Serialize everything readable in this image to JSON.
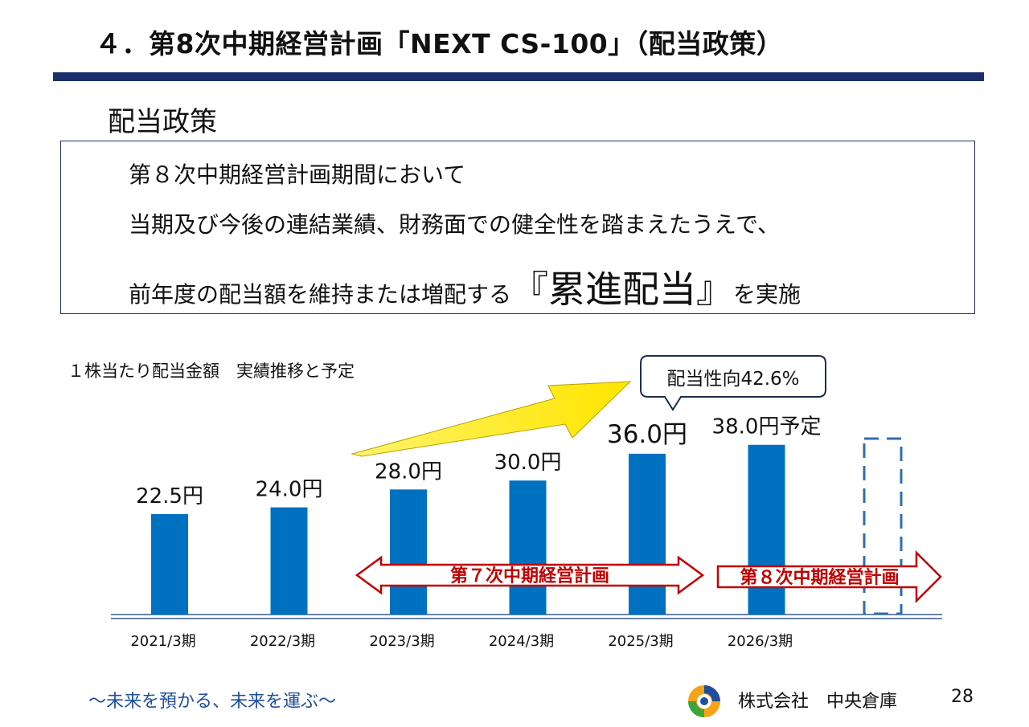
{
  "header": {
    "title": "４．第8次中期経営計画「NEXT CS-100」（配当政策）",
    "section": "配当政策"
  },
  "policy": {
    "line1": "第８次中期経営計画期間において",
    "line2": "当期及び今後の連結業績、財務面での健全性を踏まえたうえで、",
    "line3_pre": "前年度の配当額を維持または増配する",
    "line3_big": "『累進配当』",
    "line3_post": "を実施"
  },
  "chart_data": {
    "type": "bar",
    "title": "１株当たり配当金額　実績推移と予定",
    "unit": "円",
    "categories": [
      "2021/3期",
      "2022/3期",
      "2023/3期",
      "2024/3期",
      "2025/3期",
      "2026/3期"
    ],
    "values": [
      22.5,
      24.0,
      28.0,
      30.0,
      36.0,
      38.0
    ],
    "value_labels": [
      "22.5円",
      "24.0円",
      "28.0円",
      "30.0円",
      "36.0円",
      "38.0円予定"
    ],
    "bar_color": "#0070c0",
    "ylim": [
      0,
      45
    ],
    "callout": "配当性向42.6%",
    "plan_arrows": [
      {
        "label": "第７次中期経営計画",
        "from": "2023/3期",
        "to": "2025/3期"
      },
      {
        "label": "第８次中期経営計画",
        "from": "2026/3期",
        "to": "2027/3期"
      }
    ],
    "plan_arrow_color": "#c00000"
  },
  "footer": {
    "slogan": "～未来を預かる、未来を運ぶ～",
    "company": "株式会社　中央倉庫",
    "page": "28"
  }
}
